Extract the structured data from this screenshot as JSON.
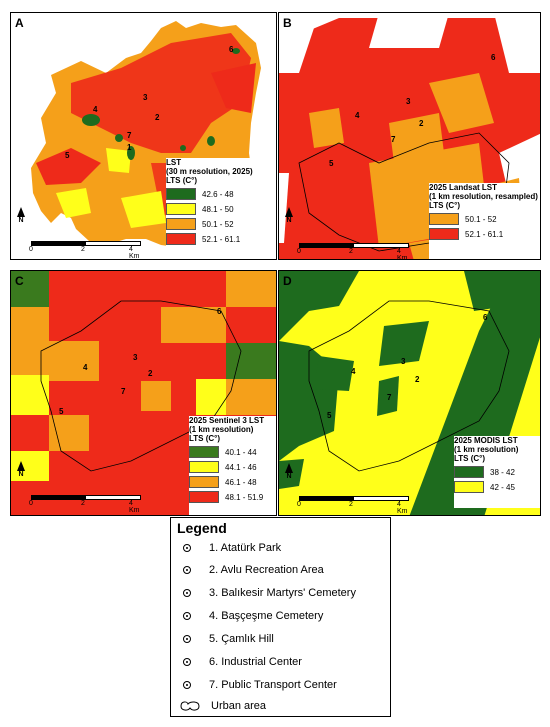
{
  "panels": {
    "a": {
      "letter": "A",
      "legend_title": "LST",
      "legend_subtitle": "(30 m resolution, 2025)",
      "legend_unit": "LTS (C°)",
      "classes": [
        {
          "range": "42.6 - 48",
          "color": "#1e6b1e"
        },
        {
          "range": "48.1 - 50",
          "color": "#ffff1a"
        },
        {
          "range": "50.1 - 52",
          "color": "#f5a01a"
        },
        {
          "range": "52.1 - 61.1",
          "color": "#ee2a1a"
        }
      ],
      "scale": {
        "start": "0",
        "mid": "2",
        "end": "4 Km"
      }
    },
    "b": {
      "letter": "B",
      "legend_title": "2025 Landsat LST",
      "legend_subtitle": "(1 km resolution, resampled)",
      "legend_unit": "LTS (C°)",
      "classes": [
        {
          "range": "50.1 - 52",
          "color": "#f5a01a"
        },
        {
          "range": "52.1 - 61.1",
          "color": "#ee2a1a"
        }
      ],
      "scale": {
        "start": "0",
        "mid": "2",
        "end": "4 Km"
      }
    },
    "c": {
      "letter": "C",
      "legend_title": "2025 Sentinel 3 LST",
      "legend_subtitle": "(1 km resolution)",
      "legend_unit": "LTS (C°)",
      "classes": [
        {
          "range": "40.1 - 44",
          "color": "#3a7a1e"
        },
        {
          "range": "44.1 - 46",
          "color": "#ffff1a"
        },
        {
          "range": "46.1 - 48",
          "color": "#f5a01a"
        },
        {
          "range": "48.1 - 51.9",
          "color": "#ee2a1a"
        }
      ],
      "scale": {
        "start": "0",
        "mid": "2",
        "end": "4 Km"
      }
    },
    "d": {
      "letter": "D",
      "legend_title": "2025 MODIS LST",
      "legend_subtitle": "(1 km resolution)",
      "legend_unit": "LTS (C°)",
      "classes": [
        {
          "range": "38 - 42",
          "color": "#1e6b1e"
        },
        {
          "range": "42 - 45",
          "color": "#ffff1a"
        }
      ],
      "scale": {
        "start": "0",
        "mid": "2",
        "end": "4 Km"
      }
    }
  },
  "north_label": "N",
  "point_labels": [
    "1",
    "2",
    "3",
    "4",
    "5",
    "6",
    "7"
  ],
  "legend": {
    "title": "Legend",
    "items": [
      "1. Atatürk Park",
      "2. Avlu Recreation Area",
      "3. Balıkesir Martyrs' Cemetery",
      "4. Başçeşme Cemetery",
      "5. Çamlık  Hill",
      "6. Industrial Center",
      "7. Public Transport Center"
    ],
    "urban_label": "Urban area"
  }
}
